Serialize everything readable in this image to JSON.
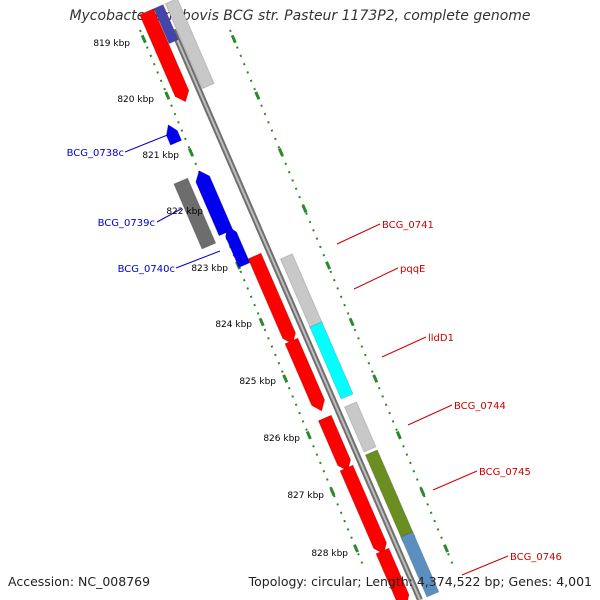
{
  "title": "Mycobacterium bovis BCG str. Pasteur 1173P2, complete genome",
  "accession": "Accession: NC_008769",
  "summary": "Topology: circular; Length: 4,374,522 bp; Genes: 4,001",
  "colors": {
    "reverse_cds": "#0000ee",
    "forward_cds": "#ff0000",
    "backbone": "#808080",
    "tick": "#2a8a2a",
    "cyan_feature": "#00ffff",
    "olive_feature": "#6b8e23",
    "steel_feature": "#5b8fbf",
    "label_red": "#cc0000",
    "label_blue": "#0000cc"
  },
  "kbp_labels": [
    "819 kbp",
    "820 kbp",
    "821 kbp",
    "822 kbp",
    "823 kbp",
    "824 kbp",
    "825 kbp",
    "826 kbp",
    "827 kbp",
    "828 kbp"
  ],
  "left_genes": [
    "BCG_0738c",
    "BCG_0739c",
    "BCG_0740c"
  ],
  "right_genes": [
    "BCG_0741",
    "pqqE",
    "lldD1",
    "BCG_0744",
    "BCG_0745",
    "BCG_0746"
  ]
}
